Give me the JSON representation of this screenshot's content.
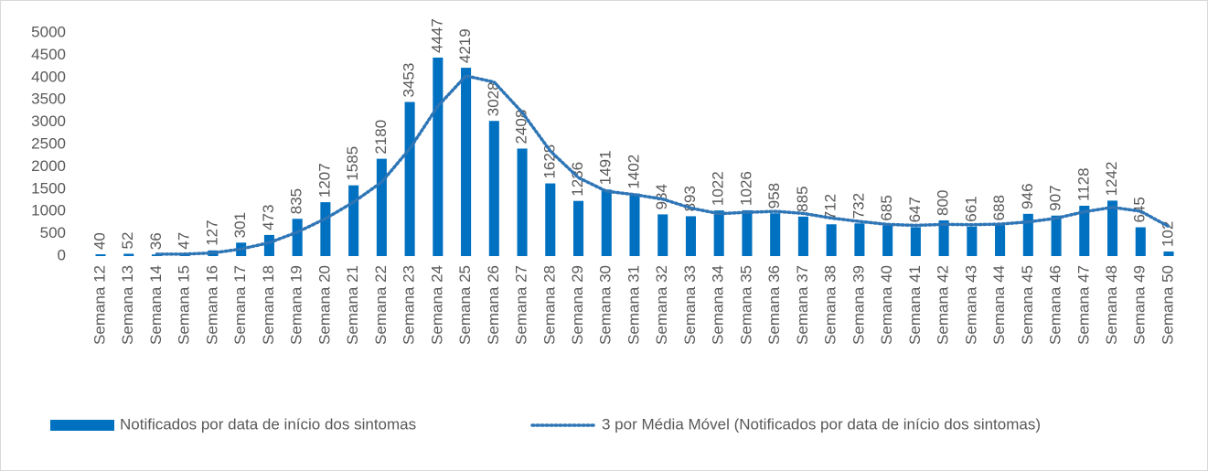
{
  "chart_data": {
    "type": "bar",
    "categories": [
      "Semana 12",
      "Semana 13",
      "Semana 14",
      "Semana 15",
      "Semana 16",
      "Semana 17",
      "Semana 18",
      "Semana 19",
      "Semana 20",
      "Semana 21",
      "Semana 22",
      "Semana 23",
      "Semana 24",
      "Semana 25",
      "Semana 26",
      "Semana 27",
      "Semana 28",
      "Semana 29",
      "Semana 30",
      "Semana 31",
      "Semana 32",
      "Semana 33",
      "Semana 34",
      "Semana 35",
      "Semana 36",
      "Semana 37",
      "Semana 38",
      "Semana 39",
      "Semana 40",
      "Semana 41",
      "Semana 42",
      "Semana 43",
      "Semana 44",
      "Semana 45",
      "Semana 46",
      "Semana 47",
      "Semana 48",
      "Semana 49",
      "Semana 50"
    ],
    "series": [
      {
        "name": "Notificados por data de início dos sintomas",
        "color": "#0070c0",
        "values": [
          40,
          52,
          36,
          47,
          127,
          301,
          473,
          835,
          1207,
          1585,
          2180,
          3453,
          4447,
          4219,
          3028,
          2408,
          1628,
          1236,
          1491,
          1402,
          934,
          893,
          1022,
          1026,
          958,
          885,
          712,
          732,
          685,
          647,
          800,
          661,
          688,
          946,
          907,
          1128,
          1242,
          645,
          102
        ]
      },
      {
        "name": "3 por Média Móvel (Notificados por data de início dos sintomas)",
        "color": "#2e75b6",
        "type": "line",
        "dash": "dotted",
        "values": [
          null,
          null,
          42.67,
          45,
          70,
          158.33,
          300.33,
          536.33,
          838.33,
          1209,
          1657.33,
          2406,
          3360,
          4039.67,
          3898,
          3218.33,
          2354.67,
          1757.33,
          1451.67,
          1376.33,
          1275.67,
          1076.33,
          949.67,
          980.33,
          1002,
          956.33,
          851.67,
          776.33,
          709.67,
          688,
          710.67,
          702.67,
          716.33,
          765,
          847,
          993.67,
          1092.33,
          1005,
          663
        ]
      }
    ],
    "ylim": [
      0,
      5000
    ],
    "yticks": [
      0,
      500,
      1000,
      1500,
      2000,
      2500,
      3000,
      3500,
      4000,
      4500,
      5000
    ],
    "legend": "bottom"
  }
}
